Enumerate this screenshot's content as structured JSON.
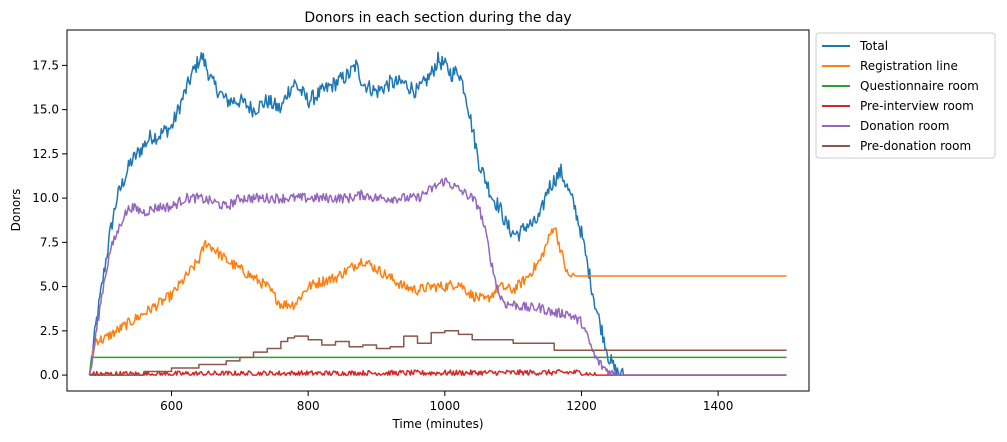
{
  "chart_data": {
    "type": "line",
    "title": "Donors in each section during the day",
    "xlabel": "Time (minutes)",
    "ylabel": "Donors",
    "xlim": [
      447,
      1533
    ],
    "ylim": [
      -0.9,
      19.5
    ],
    "x_ticks": [
      600,
      800,
      1000,
      1200,
      1400
    ],
    "x_tick_labels": [
      "600",
      "800",
      "1000",
      "1200",
      "1400"
    ],
    "y_ticks": [
      0,
      2.5,
      5,
      7.5,
      10,
      12.5,
      15,
      17.5
    ],
    "y_tick_labels": [
      "0.0",
      "2.5",
      "5.0",
      "7.5",
      "10.0",
      "12.5",
      "15.0",
      "17.5"
    ],
    "grid": false,
    "legend_position": "outside upper right",
    "series": [
      {
        "name": "Total",
        "color": "#1f77b4",
        "noise": 0.45,
        "x": [
          480,
          485,
          490,
          500,
          510,
          520,
          530,
          540,
          550,
          560,
          570,
          580,
          590,
          600,
          610,
          620,
          630,
          640,
          645,
          650,
          660,
          670,
          680,
          700,
          720,
          740,
          760,
          770,
          780,
          800,
          820,
          840,
          860,
          870,
          880,
          900,
          920,
          940,
          960,
          980,
          990,
          1000,
          1010,
          1020,
          1030,
          1040,
          1050,
          1060,
          1070,
          1080,
          1090,
          1100,
          1110,
          1120,
          1130,
          1140,
          1150,
          1160,
          1170,
          1180,
          1190,
          1200,
          1210,
          1220,
          1230,
          1240,
          1250,
          1260,
          1500
        ],
        "y": [
          0,
          1.5,
          3.0,
          5.5,
          8.0,
          10.0,
          11.0,
          12.0,
          12.5,
          13.0,
          13.5,
          13.5,
          13.8,
          14.0,
          15.0,
          16.0,
          17.0,
          17.8,
          18.0,
          17.5,
          16.5,
          16.0,
          15.5,
          15.5,
          15.0,
          15.5,
          15.0,
          16.0,
          16.5,
          15.5,
          16.0,
          16.5,
          17.0,
          17.5,
          16.5,
          16.0,
          16.5,
          16.5,
          16.0,
          17.0,
          17.8,
          17.5,
          17.0,
          17.2,
          16.0,
          14.0,
          12.0,
          11.0,
          10.0,
          9.5,
          8.5,
          8.0,
          8.0,
          8.5,
          8.5,
          9.0,
          10.5,
          11.0,
          11.5,
          10.5,
          9.5,
          8.0,
          6.0,
          4.0,
          2.5,
          1.0,
          0.2,
          0,
          0
        ]
      },
      {
        "name": "Registration line",
        "color": "#ff7f0e",
        "noise": 0.3,
        "x": [
          480,
          485,
          490,
          500,
          520,
          540,
          560,
          580,
          600,
          620,
          640,
          650,
          660,
          680,
          700,
          720,
          740,
          760,
          780,
          800,
          820,
          840,
          860,
          880,
          900,
          920,
          940,
          960,
          980,
          1000,
          1020,
          1040,
          1060,
          1080,
          1100,
          1120,
          1140,
          1150,
          1160,
          1170,
          1180,
          1190,
          1500
        ],
        "y": [
          0,
          1.5,
          2.0,
          2.0,
          2.5,
          3.0,
          3.5,
          4.0,
          4.5,
          5.5,
          6.5,
          7.5,
          7.2,
          6.5,
          6.0,
          5.5,
          5.0,
          4.0,
          4.0,
          5.0,
          5.3,
          5.5,
          6.0,
          6.5,
          6.0,
          5.5,
          5.0,
          4.8,
          5.0,
          5.0,
          5.2,
          4.5,
          4.2,
          5.0,
          4.8,
          5.5,
          6.5,
          7.5,
          8.5,
          7.0,
          5.6,
          5.6,
          5.6
        ]
      },
      {
        "name": "Questionnaire room",
        "color": "#2ca02c",
        "noise": 0.12,
        "x": [
          480,
          483,
          1500
        ],
        "y": [
          0,
          1.0,
          1.0
        ]
      },
      {
        "name": "Pre-interview room",
        "color": "#d62728",
        "noise": 0.16,
        "x": [
          480,
          1200,
          1210,
          1220,
          1500
        ],
        "y": [
          0.05,
          0.15,
          0.05,
          0,
          0
        ]
      },
      {
        "name": "Donation room",
        "color": "#9467bd",
        "noise": 0.28,
        "x": [
          480,
          485,
          490,
          500,
          510,
          520,
          530,
          540,
          560,
          580,
          600,
          620,
          640,
          660,
          680,
          700,
          720,
          740,
          760,
          780,
          800,
          820,
          840,
          860,
          880,
          900,
          920,
          940,
          960,
          980,
          1000,
          1020,
          1040,
          1050,
          1060,
          1070,
          1080,
          1090,
          1100,
          1120,
          1140,
          1160,
          1180,
          1190,
          1200,
          1210,
          1220,
          1230,
          1240,
          1250,
          1260,
          1500
        ],
        "y": [
          0,
          1.0,
          2.5,
          5.0,
          7.0,
          8.0,
          9.0,
          9.5,
          9.2,
          9.5,
          9.5,
          10.0,
          10.0,
          9.8,
          9.5,
          10.0,
          10.0,
          10.0,
          10.0,
          10.0,
          10.0,
          10.0,
          10.0,
          10.0,
          10.2,
          10.0,
          10.0,
          10.0,
          10.0,
          10.5,
          11.0,
          10.5,
          10.0,
          9.5,
          8.0,
          6.0,
          4.5,
          4.0,
          4.0,
          3.8,
          3.8,
          3.5,
          3.5,
          3.2,
          3.0,
          2.0,
          1.0,
          0.5,
          0.2,
          0,
          0,
          0
        ]
      },
      {
        "name": "Pre-donation room",
        "color": "#8c564b",
        "noise": 0,
        "step": true,
        "x": [
          480,
          520,
          560,
          600,
          640,
          680,
          700,
          720,
          740,
          760,
          770,
          780,
          800,
          820,
          840,
          860,
          880,
          900,
          920,
          940,
          960,
          980,
          1000,
          1020,
          1040,
          1100,
          1160,
          1500
        ],
        "y": [
          0,
          0,
          0.2,
          0.4,
          0.6,
          0.8,
          1.0,
          1.3,
          1.5,
          1.9,
          2.1,
          2.2,
          2.0,
          1.7,
          1.9,
          1.6,
          1.7,
          1.5,
          1.6,
          2.2,
          1.8,
          2.4,
          2.5,
          2.3,
          2.0,
          1.8,
          1.4,
          1.4
        ]
      }
    ]
  }
}
